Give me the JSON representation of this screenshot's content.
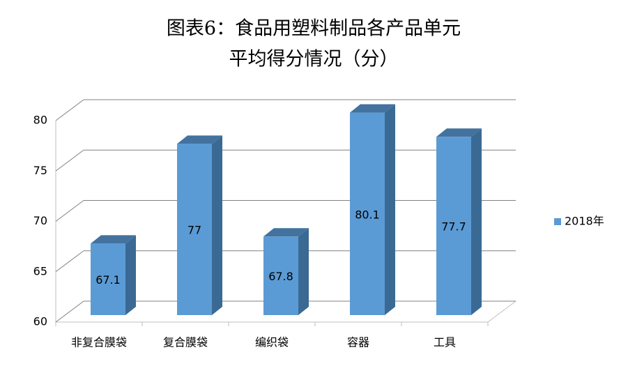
{
  "chart_data": {
    "type": "bar3d",
    "title": [
      "图表6：食品用塑料制品各产品单元",
      "平均得分情况（分）"
    ],
    "categories": [
      "非复合膜袋",
      "复合膜袋",
      "编织袋",
      "容器",
      "工具"
    ],
    "series": [
      {
        "name": "2018年",
        "color": "#5b9bd5",
        "values": [
          67.1,
          77,
          67.8,
          80.1,
          77.7
        ]
      }
    ],
    "ylim": [
      60,
      80
    ],
    "yticks": [
      60,
      65,
      70,
      75,
      80
    ],
    "grid": true,
    "legend": "right"
  }
}
